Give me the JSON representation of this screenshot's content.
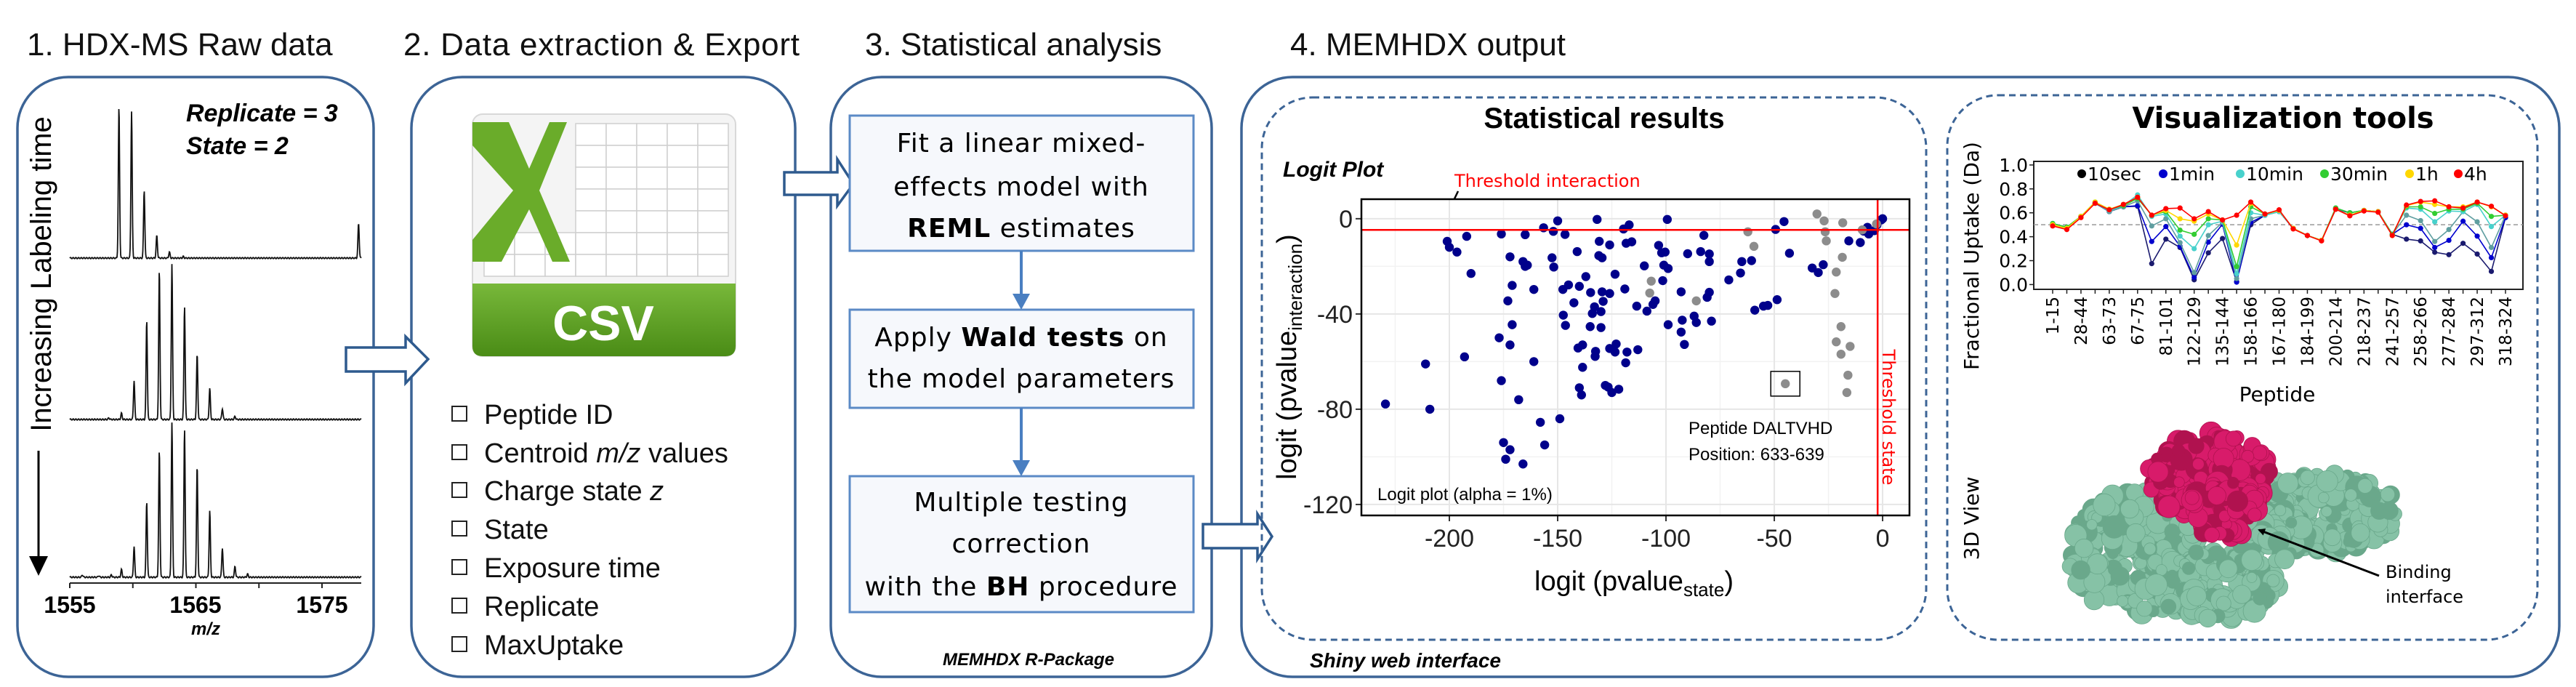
{
  "panel1": {
    "title": "1. HDX-MS Raw data",
    "replicate": "Replicate = 3",
    "state": "State = 2",
    "time_label": "Increasing Labeling time",
    "axis_ticks": [
      "1555",
      "1565",
      "1575"
    ],
    "axis_label": "m/z"
  },
  "panel2": {
    "title": "2. Data extraction & Export",
    "icon_label": "CSV",
    "items": [
      {
        "pre": "Peptide ID",
        "em": "",
        "post": ""
      },
      {
        "pre": "Centroid ",
        "em": "m/z",
        "post": " values"
      },
      {
        "pre": "Charge state ",
        "em": "z",
        "post": ""
      },
      {
        "pre": "State",
        "em": "",
        "post": ""
      },
      {
        "pre": "Exposure time",
        "em": "",
        "post": ""
      },
      {
        "pre": "Replicate",
        "em": "",
        "post": ""
      },
      {
        "pre": "MaxUptake",
        "em": "",
        "post": ""
      }
    ]
  },
  "panel3": {
    "title": "3. Statistical analysis",
    "step1": {
      "line1": "Fit a linear mixed-",
      "line2": "effects model with",
      "bold": "REML",
      "rest": " estimates"
    },
    "step2": {
      "pre": "Apply ",
      "bold": "Wald tests",
      "post": " on",
      "line2": "the model parameters"
    },
    "step3": {
      "line1": "Multiple testing",
      "line2": "correction",
      "pre": "with the ",
      "bold": "BH",
      "post": " procedure"
    },
    "footer": "MEMHDX R-Package"
  },
  "panel4": {
    "title": "4. MEMHDX output",
    "footer": "Shiny web interface",
    "stats": {
      "heading": "Statistical results",
      "plot_title": "Logit Plot",
      "threshold_interaction": "Threshold interaction",
      "threshold_state": "Threshold state",
      "annotation_line1": "Peptide DALTVHD",
      "annotation_line2": "Position: 633-639",
      "caption": "Logit plot (alpha = 1%)"
    },
    "viz": {
      "heading": "Visualization tools",
      "view3d_label": "3D View",
      "binding_line1": "Binding",
      "binding_line2": "interface",
      "protein_colors": {
        "protein": "#86c2a6",
        "interface": "#d81b6a"
      }
    }
  },
  "colors": {
    "panel_border": "#3c6496",
    "step_border": "#5b8ac6",
    "csv_green": "#5a9e1e",
    "threshold": "#ff0000"
  },
  "chart_data": [
    {
      "type": "scatter",
      "title": "Logit Plot",
      "xlabel": {
        "main": "logit (pvalue",
        "sub": "state",
        "close": ")"
      },
      "ylabel": {
        "main": "logit (pvalue",
        "sub": "interaction",
        "close": ")"
      },
      "xlim": [
        -240.6,
        12.4
      ],
      "ylim": [
        -124.6,
        8.2
      ],
      "xticks": [
        -200,
        -150,
        -100,
        -50,
        0
      ],
      "yticks": [
        0,
        -40,
        -80,
        -120
      ],
      "xtick_labels": [
        "-200",
        "-150",
        "-100",
        "-50",
        "0"
      ],
      "ytick_labels": [
        "0",
        "-40",
        "-80",
        "-120"
      ],
      "grid": true,
      "threshold_interaction_y": -4.7,
      "threshold_state_x": -2.3,
      "highlighted_point": [
        -44.9,
        -69.3
      ],
      "series": [
        {
          "color": "#00008b",
          "points": [
            [
              -229.5,
              -77.8
            ],
            [
              -211,
              -61
            ],
            [
              -209,
              -80
            ],
            [
              -201,
              -9.5
            ],
            [
              -200,
              -12
            ],
            [
              -196.5,
              -14
            ],
            [
              -192,
              -7.4
            ],
            [
              -190,
              -23
            ],
            [
              -193,
              -58
            ],
            [
              -176,
              -6.4
            ],
            [
              -172,
              -16
            ],
            [
              -171,
              -28
            ],
            [
              -173,
              -34.5
            ],
            [
              -171,
              -44.5
            ],
            [
              -177,
              -50
            ],
            [
              -172,
              -53
            ],
            [
              -176,
              -68
            ],
            [
              -168,
              -76
            ],
            [
              -175,
              -94
            ],
            [
              -172,
              -97
            ],
            [
              -174,
              -101
            ],
            [
              -166,
              -103
            ],
            [
              -166,
              -18
            ],
            [
              -165,
              -20
            ],
            [
              -164,
              -19.5
            ],
            [
              -165,
              -6.7
            ],
            [
              -161,
              -29.7
            ],
            [
              -161,
              -60
            ],
            [
              -158,
              -85.5
            ],
            [
              -156,
              -95
            ],
            [
              -156.5,
              -3.8
            ],
            [
              -150,
              -0.9
            ],
            [
              -152,
              -5.3
            ],
            [
              -152.6,
              -16.4
            ],
            [
              -151.8,
              -20.3
            ],
            [
              -149,
              -84
            ],
            [
              -147.6,
              -29.7
            ],
            [
              -145,
              -27.8
            ],
            [
              -147.4,
              -40.5
            ],
            [
              -146.4,
              -44.8
            ],
            [
              -146.6,
              -6.6
            ],
            [
              -142.5,
              -35.3
            ],
            [
              -141,
              -13.8
            ],
            [
              -140,
              -28.4
            ],
            [
              -137,
              -24.3
            ],
            [
              -140.6,
              -54.3
            ],
            [
              -138.5,
              -53
            ],
            [
              -138.5,
              -62.4
            ],
            [
              -140,
              -71
            ],
            [
              -139,
              -74
            ],
            [
              -134.8,
              -31
            ],
            [
              -135,
              -45.3
            ],
            [
              -134,
              -39.8
            ],
            [
              -133,
              -37
            ],
            [
              -130,
              -39
            ],
            [
              -132.7,
              -57.8
            ],
            [
              -132.5,
              -55.7
            ],
            [
              -130,
              -45.7
            ],
            [
              -131.8,
              -0.3
            ],
            [
              -130.8,
              -9.5
            ],
            [
              -131,
              -15.5
            ],
            [
              -129.5,
              -16.4
            ],
            [
              -129.5,
              -30.7
            ],
            [
              -129,
              -34.7
            ],
            [
              -126,
              -11
            ],
            [
              -126,
              -31.4
            ],
            [
              -123.5,
              -23.3
            ],
            [
              -126,
              -54.5
            ],
            [
              -123,
              -52.6
            ],
            [
              -123.5,
              -56
            ],
            [
              -128,
              -70
            ],
            [
              -126.7,
              -70.7
            ],
            [
              -125,
              -73
            ],
            [
              -121.8,
              -71.6
            ],
            [
              -119,
              -29.5
            ],
            [
              -118.6,
              -60.5
            ],
            [
              -118,
              -56
            ],
            [
              -119.6,
              -4.3
            ],
            [
              -117,
              -2.6
            ],
            [
              -118.4,
              -10.3
            ],
            [
              -115.8,
              -9.7
            ],
            [
              -113.5,
              -36.7
            ],
            [
              -113,
              -55
            ],
            [
              -110,
              -19.8
            ],
            [
              -108.8,
              -38.8
            ],
            [
              -105,
              -34.5
            ],
            [
              -106,
              -36
            ],
            [
              -103.4,
              -11.2
            ],
            [
              -102,
              -14.3
            ],
            [
              -100.4,
              -14
            ],
            [
              -101,
              -19.5
            ],
            [
              -99,
              -20.9
            ],
            [
              -101.5,
              -26
            ],
            [
              -99.4,
              -0.3
            ],
            [
              -99,
              -44.5
            ],
            [
              -93,
              -30.7
            ],
            [
              -92.5,
              -42.6
            ],
            [
              -93,
              -47.6
            ],
            [
              -91.5,
              -52.8
            ],
            [
              -90,
              -14.7
            ],
            [
              -87,
              -40.9
            ],
            [
              -86,
              -43.6
            ],
            [
              -84,
              -13.8
            ],
            [
              -82.5,
              -7
            ],
            [
              -80,
              -14.8
            ],
            [
              -80,
              -18
            ],
            [
              -81,
              -33
            ],
            [
              -80,
              -30.9
            ],
            [
              -79,
              -43
            ],
            [
              -71,
              -25.7
            ],
            [
              -65.6,
              -22.8
            ],
            [
              -65,
              -18
            ],
            [
              -60.5,
              -17.6
            ],
            [
              -59,
              -38.4
            ],
            [
              -55,
              -36.7
            ],
            [
              -53,
              -36.4
            ],
            [
              -48.7,
              -34
            ],
            [
              -49.4,
              -4.5
            ],
            [
              -45.5,
              -1.2
            ],
            [
              -43,
              -14.5
            ],
            [
              -32.5,
              -20.7
            ],
            [
              -29.7,
              -22.6
            ],
            [
              -27.4,
              -19.3
            ],
            [
              -15.6,
              -9.3
            ],
            [
              -10.3,
              -10
            ],
            [
              -8.8,
              -5.2
            ],
            [
              -7,
              -3.6
            ],
            [
              -6.4,
              -6.4
            ],
            [
              -3.8,
              -5
            ],
            [
              -2.6,
              -2.6
            ],
            [
              -0.6,
              -0.5
            ],
            [
              0,
              0
            ]
          ]
        },
        {
          "color": "#8c8c8c",
          "points": [
            [
              -30.3,
              2
            ],
            [
              -27,
              -0.9
            ],
            [
              -26.5,
              -5.5
            ],
            [
              -26,
              -9.3
            ],
            [
              -18.4,
              -1.7
            ],
            [
              -18.6,
              -16.2
            ],
            [
              -21.4,
              -22.4
            ],
            [
              -22,
              -31.4
            ],
            [
              -19.2,
              -45.3
            ],
            [
              -21.4,
              -51.7
            ],
            [
              -15,
              -53.6
            ],
            [
              -19.2,
              -56.9
            ],
            [
              -16,
              -65.7
            ],
            [
              -16.5,
              -73
            ],
            [
              -44.9,
              -69.3
            ],
            [
              -62.2,
              -5.5
            ],
            [
              -59.4,
              -11.6
            ],
            [
              -86,
              -34.5
            ],
            [
              -106.8,
              -26.2
            ],
            [
              -107.5,
              -31.2
            ],
            [
              -9.4,
              -4.7
            ],
            [
              -2.8,
              -2.2
            ]
          ]
        }
      ]
    },
    {
      "type": "line",
      "xlabel": "Peptide",
      "ylabel": "Fractional Uptake (Da)",
      "ylim": [
        -0.04,
        1.03
      ],
      "yticks": [
        "0.0",
        "0.2",
        "0.4",
        "0.6",
        "0.8",
        "1.0"
      ],
      "x_tick_labels": [
        "1-15",
        "28-44",
        "63-73",
        "67-75",
        "81-101",
        "122-129",
        "135-144",
        "158-166",
        "167-180",
        "184-199",
        "200-214",
        "218-237",
        "241-257",
        "258-266",
        "277-284",
        "297-312",
        "318-324"
      ],
      "reference_line": 0.5,
      "legend_position": "top",
      "series": [
        {
          "name": "10sec",
          "color": "#000000",
          "line_color": "#1a1a6e",
          "values": [
            0.51,
            0.48,
            0.57,
            0.68,
            0.61,
            0.65,
            0.655,
            0.175,
            0.38,
            0.31,
            0.04,
            0.265,
            0.385,
            0.025,
            0.5,
            0.58,
            0.61,
            0.47,
            0.41,
            0.37,
            0.63,
            0.6,
            0.62,
            0.61,
            0.42,
            0.38,
            0.365,
            0.27,
            0.25,
            0.345,
            0.255,
            0.11,
            0.56
          ]
        },
        {
          "name": "1min",
          "color": "#0000cd",
          "line_color": "#0000cd",
          "values": [
            0.51,
            0.48,
            0.57,
            0.68,
            0.61,
            0.65,
            0.66,
            0.36,
            0.485,
            0.32,
            0.06,
            0.355,
            0.505,
            0.02,
            0.52,
            0.58,
            0.61,
            0.47,
            0.41,
            0.37,
            0.63,
            0.6,
            0.62,
            0.61,
            0.42,
            0.5,
            0.47,
            0.31,
            0.37,
            0.53,
            0.405,
            0.225,
            0.56
          ]
        },
        {
          "color": "#5f9ea0",
          "line_color": "#5f9ea0",
          "values": [
            0.51,
            0.48,
            0.57,
            0.68,
            0.61,
            0.65,
            0.7,
            0.49,
            0.55,
            0.35,
            0.1,
            0.41,
            0.52,
            0.05,
            0.55,
            0.58,
            0.61,
            0.47,
            0.41,
            0.37,
            0.64,
            0.6,
            0.62,
            0.61,
            0.42,
            0.58,
            0.535,
            0.36,
            0.46,
            0.61,
            0.525,
            0.31,
            0.58
          ]
        },
        {
          "name": "10min",
          "color": "#48d1cc",
          "line_color": "#48d1cc",
          "values": [
            0.51,
            0.48,
            0.57,
            0.69,
            0.62,
            0.66,
            0.75,
            0.57,
            0.59,
            0.405,
            0.3,
            0.5,
            0.53,
            0.09,
            0.6,
            0.58,
            0.61,
            0.47,
            0.41,
            0.37,
            0.64,
            0.6,
            0.62,
            0.61,
            0.42,
            0.64,
            0.63,
            0.525,
            0.615,
            0.61,
            0.67,
            0.485,
            0.58
          ]
        },
        {
          "name": "30min",
          "color": "#32cd32",
          "line_color": "#32cd32",
          "values": [
            0.51,
            0.48,
            0.57,
            0.69,
            0.63,
            0.66,
            0.72,
            0.58,
            0.61,
            0.455,
            0.42,
            0.55,
            0.54,
            0.15,
            0.65,
            0.59,
            0.62,
            0.47,
            0.41,
            0.37,
            0.64,
            0.6,
            0.62,
            0.61,
            0.42,
            0.65,
            0.65,
            0.595,
            0.63,
            0.63,
            0.68,
            0.57,
            0.58
          ]
        },
        {
          "name": "1h",
          "color": "#ffd700",
          "line_color": "#ffd700",
          "values": [
            0.5,
            0.47,
            0.57,
            0.69,
            0.63,
            0.67,
            0.73,
            0.58,
            0.62,
            0.55,
            0.53,
            0.59,
            0.54,
            0.33,
            0.68,
            0.59,
            0.62,
            0.47,
            0.41,
            0.37,
            0.63,
            0.58,
            0.62,
            0.61,
            0.41,
            0.66,
            0.69,
            0.67,
            0.65,
            0.65,
            0.69,
            0.65,
            0.58
          ]
        },
        {
          "name": "4h",
          "color": "#ff0000",
          "line_color": "#ff0000",
          "values": [
            0.49,
            0.46,
            0.56,
            0.68,
            0.625,
            0.67,
            0.73,
            0.58,
            0.635,
            0.64,
            0.55,
            0.61,
            0.54,
            0.58,
            0.69,
            0.59,
            0.625,
            0.465,
            0.41,
            0.365,
            0.63,
            0.575,
            0.615,
            0.605,
            0.41,
            0.665,
            0.695,
            0.7,
            0.65,
            0.64,
            0.69,
            0.655,
            0.575
          ]
        }
      ]
    }
  ]
}
